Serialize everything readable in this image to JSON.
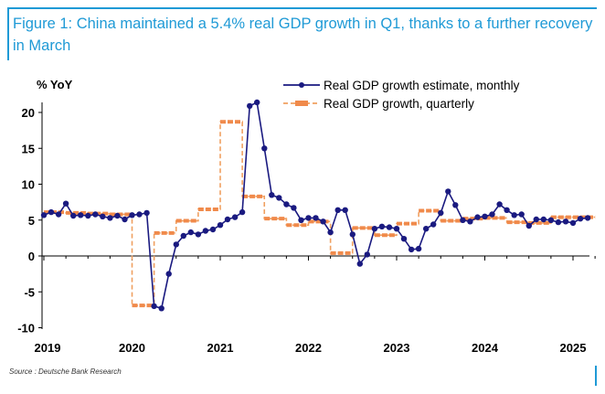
{
  "figure": {
    "title": "Figure 1: China maintained a 5.4% real GDP growth in Q1, thanks to a further recovery in March",
    "source": "Source : Deutsche Bank Research"
  },
  "colors": {
    "accent": "#1f9ad6",
    "monthly": "#1a1a80",
    "quarterly": "#f0a060"
  },
  "chart_data": {
    "type": "line",
    "ylabel": "% YoY",
    "ylim": [
      -10,
      22
    ],
    "yticks": [
      -10,
      -5,
      0,
      5,
      10,
      15,
      20
    ],
    "xticks": [
      "2019",
      "2020",
      "2021",
      "2022",
      "2023",
      "2024",
      "2025"
    ],
    "legend": [
      "Real GDP growth estimate, monthly",
      "Real GDP growth, quarterly"
    ],
    "legend_position": "top-right",
    "grid": false,
    "series": [
      {
        "name": "Real GDP growth estimate, monthly",
        "x": [
          "2019-01",
          "2019-02",
          "2019-03",
          "2019-04",
          "2019-05",
          "2019-06",
          "2019-07",
          "2019-08",
          "2019-09",
          "2019-10",
          "2019-11",
          "2019-12",
          "2020-01",
          "2020-02",
          "2020-03",
          "2020-04",
          "2020-05",
          "2020-06",
          "2020-07",
          "2020-08",
          "2020-09",
          "2020-10",
          "2020-11",
          "2020-12",
          "2021-01",
          "2021-02",
          "2021-03",
          "2021-04",
          "2021-05",
          "2021-06",
          "2021-07",
          "2021-08",
          "2021-09",
          "2021-10",
          "2021-11",
          "2021-12",
          "2022-01",
          "2022-02",
          "2022-03",
          "2022-04",
          "2022-05",
          "2022-06",
          "2022-07",
          "2022-08",
          "2022-09",
          "2022-10",
          "2022-11",
          "2022-12",
          "2023-01",
          "2023-02",
          "2023-03",
          "2023-04",
          "2023-05",
          "2023-06",
          "2023-07",
          "2023-08",
          "2023-09",
          "2023-10",
          "2023-11",
          "2023-12",
          "2024-01",
          "2024-02",
          "2024-03",
          "2024-04",
          "2024-05",
          "2024-06",
          "2024-07",
          "2024-08",
          "2024-09",
          "2024-10",
          "2024-11",
          "2024-12",
          "2025-01",
          "2025-02",
          "2025-03"
        ],
        "values": [
          5.7,
          6.1,
          5.8,
          7.3,
          5.6,
          5.7,
          5.6,
          5.8,
          5.5,
          5.3,
          5.6,
          5.1,
          5.7,
          5.8,
          6.0,
          -7.0,
          -7.3,
          -2.5,
          1.6,
          2.8,
          3.3,
          3.0,
          3.5,
          3.7,
          4.3,
          5.1,
          5.4,
          6.1,
          20.9,
          21.4,
          15.0,
          8.5,
          8.1,
          7.2,
          6.7,
          5.0,
          5.3,
          5.3,
          4.8,
          3.3,
          6.4,
          6.4,
          3.0,
          -1.1,
          0.2,
          3.8,
          4.1,
          4.0,
          3.8,
          2.4,
          0.9,
          1.0,
          3.8,
          4.4,
          6.0,
          9.0,
          7.1,
          5.0,
          4.8,
          5.4,
          5.5,
          5.8,
          7.2,
          6.4,
          5.7,
          5.8,
          4.2,
          5.1,
          5.1,
          5.0,
          4.7,
          4.8,
          4.6,
          5.2,
          5.3
        ]
      },
      {
        "name": "Real GDP growth, quarterly",
        "style": "dashed-step",
        "x": [
          "2019Q1",
          "2019Q2",
          "2019Q3",
          "2019Q4",
          "2020Q1",
          "2020Q2",
          "2020Q3",
          "2020Q4",
          "2021Q1",
          "2021Q2",
          "2021Q3",
          "2021Q4",
          "2022Q1",
          "2022Q2",
          "2022Q3",
          "2022Q4",
          "2023Q1",
          "2023Q2",
          "2023Q3",
          "2023Q4",
          "2024Q1",
          "2024Q2",
          "2024Q3",
          "2024Q4",
          "2025Q1"
        ],
        "values": [
          6.1,
          6.0,
          5.9,
          5.8,
          -6.9,
          3.2,
          4.9,
          6.5,
          18.7,
          8.3,
          5.2,
          4.3,
          4.8,
          0.4,
          3.9,
          2.9,
          4.5,
          6.3,
          4.9,
          5.2,
          5.3,
          4.7,
          4.6,
          5.4,
          5.4
        ]
      }
    ]
  }
}
